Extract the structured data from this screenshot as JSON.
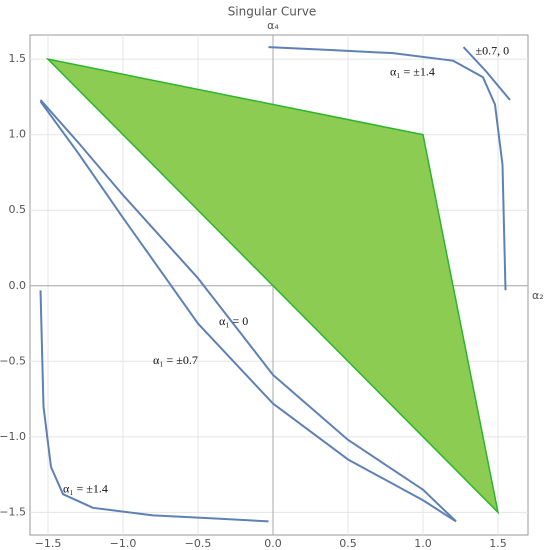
{
  "chart_data": {
    "type": "line",
    "title": "Singular Curve",
    "ylabel": "α₄",
    "xlabel": "α₂",
    "xlim": [
      -1.62,
      1.7
    ],
    "ylim": [
      -1.65,
      1.66
    ],
    "xticks": [
      {
        "value": -1.5,
        "label": "−1.5"
      },
      {
        "value": -1.0,
        "label": "−1.0"
      },
      {
        "value": -0.5,
        "label": "−0.5"
      },
      {
        "value": 0.0,
        "label": "0.0"
      },
      0.5,
      {
        "value": 1.0,
        "label": "1.0"
      },
      1.5
    ],
    "yticks": [
      {
        "value": -1.5,
        "label": "−1.5"
      },
      {
        "value": -1.0,
        "label": "−1.0"
      },
      {
        "value": -0.5,
        "label": "−0.5"
      },
      {
        "value": 0.0,
        "label": "0.0"
      },
      0.5,
      {
        "value": 1.0,
        "label": "1.0"
      },
      1.5
    ],
    "grid": true,
    "polygon": {
      "x": [
        -1.5,
        1.0,
        1.5
      ],
      "y": [
        1.5,
        1.0,
        -1.5
      ],
      "fill": "#8ccc52",
      "stroke": "#2cb52c"
    },
    "series": [
      {
        "color": "#5e81b5",
        "x": [
          -1.55,
          -1.3,
          -1.0,
          -0.5,
          0,
          0.5,
          1.0,
          1.22
        ],
        "values": [
          1.23,
          0.95,
          0.6,
          0.05,
          -0.59,
          -1.02,
          -1.35,
          -1.56
        ]
      },
      {
        "color": "#5e81b5",
        "x": [
          -1.55,
          -1.3,
          -1.0,
          -0.5,
          0,
          0.5,
          1.0,
          1.22
        ],
        "values": [
          1.22,
          0.88,
          0.45,
          -0.25,
          -0.78,
          -1.15,
          -1.42,
          -1.56
        ]
      },
      {
        "color": "#5e81b5",
        "x": [
          -1.55,
          -1.53,
          -1.48,
          -1.4,
          -1.2,
          -0.8,
          -0.4,
          -0.03
        ],
        "values": [
          -0.03,
          -0.8,
          -1.2,
          -1.38,
          -1.47,
          -1.52,
          -1.54,
          -1.56
        ]
      },
      {
        "color": "#5e81b5",
        "x": [
          -0.03,
          0.4,
          0.8,
          1.2,
          1.4,
          1.48,
          1.53,
          1.55
        ],
        "values": [
          1.58,
          1.56,
          1.54,
          1.49,
          1.38,
          1.2,
          0.8,
          -0.03
        ]
      },
      {
        "color": "#5e81b5",
        "x": [
          1.27,
          1.42,
          1.58
        ],
        "values": [
          1.58,
          1.42,
          1.23
        ]
      }
    ],
    "annotations": [
      {
        "text": "α₁ = ±1.4",
        "x": 0.78,
        "y": 1.41
      },
      {
        "text": "±0.7, 0",
        "x": 1.35,
        "y": 1.55
      },
      {
        "text": "α₁ = 0",
        "x": -0.36,
        "y": -0.24
      },
      {
        "text": "α₁ = ±0.7",
        "x": -0.8,
        "y": -0.5
      },
      {
        "text": "α₁ = ±1.4",
        "x": -1.4,
        "y": -1.35
      }
    ]
  }
}
